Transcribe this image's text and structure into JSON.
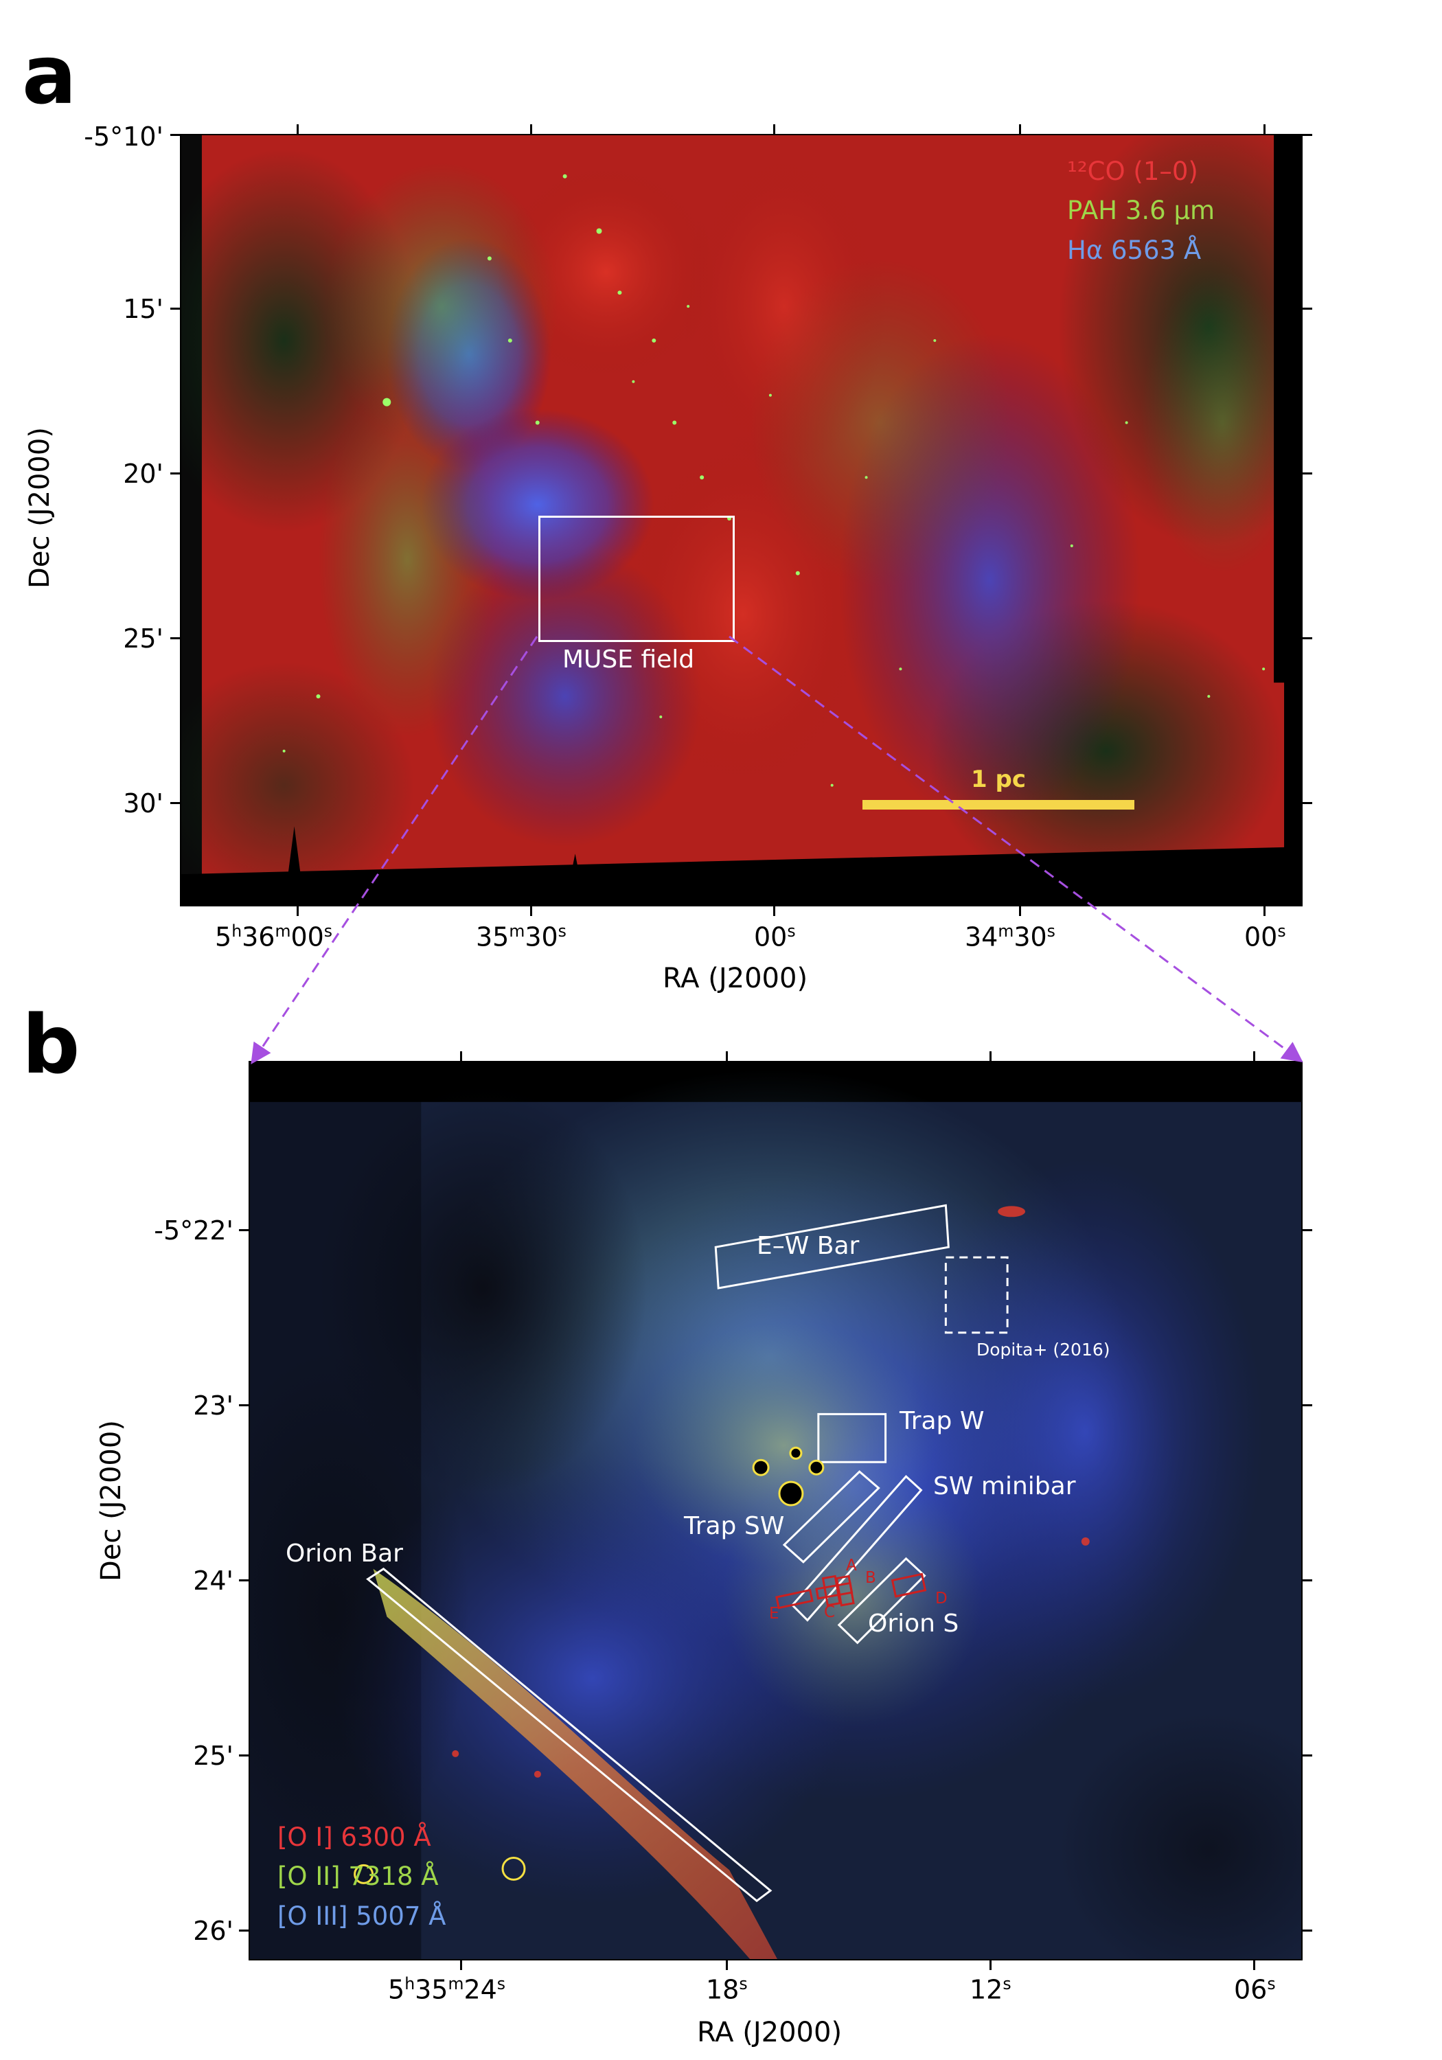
{
  "panel_a": {
    "letter": "a",
    "legend": [
      {
        "text": "¹²CO (1–0)",
        "color": "#e8363a"
      },
      {
        "text": "PAH 3.6 μm",
        "color": "#9fd64a"
      },
      {
        "text": "Hα 6563 Å",
        "color": "#6f9ce8"
      }
    ],
    "muse_label": "MUSE field",
    "scalebar_label": "1 pc",
    "scalebar_color": "#f5d64a",
    "y_ticks": [
      "-5°10'",
      "15'",
      "20'",
      "25'",
      "30'"
    ],
    "x_ticks": [
      {
        "base": "5",
        "h": "h",
        "m_val": "36",
        "m": "m",
        "s_val": "00",
        "s": "s"
      },
      {
        "base": "",
        "h": "",
        "m_val": "35",
        "m": "m",
        "s_val": "30",
        "s": "s"
      },
      {
        "base": "",
        "h": "",
        "m_val": "",
        "m": "",
        "s_val": "00",
        "s": "s"
      },
      {
        "base": "",
        "h": "",
        "m_val": "34",
        "m": "m",
        "s_val": "30",
        "s": "s"
      },
      {
        "base": "",
        "h": "",
        "m_val": "",
        "m": "",
        "s_val": "00",
        "s": "s"
      }
    ],
    "xlabel": "RA (J2000)",
    "ylabel": "Dec (J2000)"
  },
  "panel_b": {
    "letter": "b",
    "legend": [
      {
        "text": "[O I] 6300 Å",
        "color": "#e8363a"
      },
      {
        "text": "[O II] 7318 Å",
        "color": "#9fd64a"
      },
      {
        "text": "[O III] 5007 Å",
        "color": "#6f9ce8"
      }
    ],
    "regions": {
      "ew_bar": "E–W Bar",
      "dopita": "Dopita+ (2016)",
      "trap_w": "Trap W",
      "sw_minibar": "SW minibar",
      "trap_sw": "Trap SW",
      "orion_bar": "Orion Bar",
      "orion_s": "Orion S",
      "slits": [
        "A",
        "B",
        "C",
        "D",
        "E"
      ]
    },
    "y_ticks": [
      "-5°22'",
      "23'",
      "24'",
      "25'",
      "26'"
    ],
    "x_ticks": [
      {
        "base": "5",
        "h": "h",
        "m_val": "35",
        "m": "m",
        "s_val": "24",
        "s": "s"
      },
      {
        "base": "",
        "h": "",
        "m_val": "",
        "m": "",
        "s_val": "18",
        "s": "s"
      },
      {
        "base": "",
        "h": "",
        "m_val": "",
        "m": "",
        "s_val": "12",
        "s": "s"
      },
      {
        "base": "",
        "h": "",
        "m_val": "",
        "m": "",
        "s_val": "06",
        "s": "s"
      }
    ],
    "xlabel": "RA (J2000)",
    "ylabel": "Dec (J2000)"
  },
  "colors": {
    "connector": "#a64fe0",
    "region_box": "#ffffff",
    "slit_box": "#cc1f1f",
    "star_circle": "#f5e042"
  }
}
